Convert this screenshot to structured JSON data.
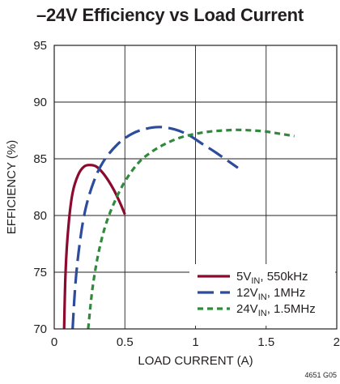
{
  "chart_data": {
    "type": "line",
    "title": "–24V Efficiency vs Load Current",
    "xlabel": "LOAD CURRENT (A)",
    "ylabel": "EFFICIENCY (%)",
    "xlim": [
      0,
      2
    ],
    "ylim": [
      70,
      95
    ],
    "xticks": [
      0,
      0.5,
      1,
      1.5,
      2
    ],
    "xtick_labels": [
      "0",
      "0.5",
      "1",
      "1.5",
      "2"
    ],
    "yticks": [
      70,
      75,
      80,
      85,
      90,
      95
    ],
    "ytick_labels": [
      "70",
      "75",
      "80",
      "85",
      "90",
      "95"
    ],
    "grid": true,
    "legend_position": "bottom-right",
    "series": [
      {
        "name_main": "5V",
        "name_sub": "IN",
        "name_rest": ", 550kHz",
        "color": "#8b0a2e",
        "dash": "solid",
        "x": [
          0.07,
          0.08,
          0.1,
          0.13,
          0.17,
          0.21,
          0.25,
          0.3,
          0.36,
          0.42,
          0.47,
          0.5
        ],
        "y": [
          70,
          75,
          79,
          82,
          83.6,
          84.3,
          84.45,
          84.3,
          83.5,
          82.3,
          81.0,
          80.1
        ]
      },
      {
        "name_main": "12V",
        "name_sub": "IN",
        "name_rest": ", 1MHz",
        "color": "#2d4c9c",
        "dash": "long",
        "x": [
          0.13,
          0.15,
          0.18,
          0.22,
          0.28,
          0.35,
          0.45,
          0.55,
          0.65,
          0.75,
          0.85,
          0.95,
          1.05,
          1.15,
          1.3
        ],
        "y": [
          70,
          74,
          77.5,
          80.5,
          83,
          84.8,
          86.3,
          87.2,
          87.65,
          87.8,
          87.6,
          87.1,
          86.3,
          85.5,
          84.2
        ]
      },
      {
        "name_main": "24V",
        "name_sub": "IN",
        "name_rest": ", 1.5MHz",
        "color": "#2e8b3a",
        "dash": "short",
        "x": [
          0.24,
          0.27,
          0.31,
          0.36,
          0.42,
          0.5,
          0.6,
          0.7,
          0.8,
          0.9,
          1.0,
          1.1,
          1.2,
          1.3,
          1.4,
          1.5,
          1.6,
          1.7
        ],
        "y": [
          70,
          73.5,
          76.5,
          79,
          81,
          83,
          84.7,
          85.7,
          86.4,
          86.9,
          87.2,
          87.4,
          87.5,
          87.55,
          87.5,
          87.4,
          87.2,
          87.0
        ]
      }
    ]
  },
  "figure_id": "4651 G05"
}
